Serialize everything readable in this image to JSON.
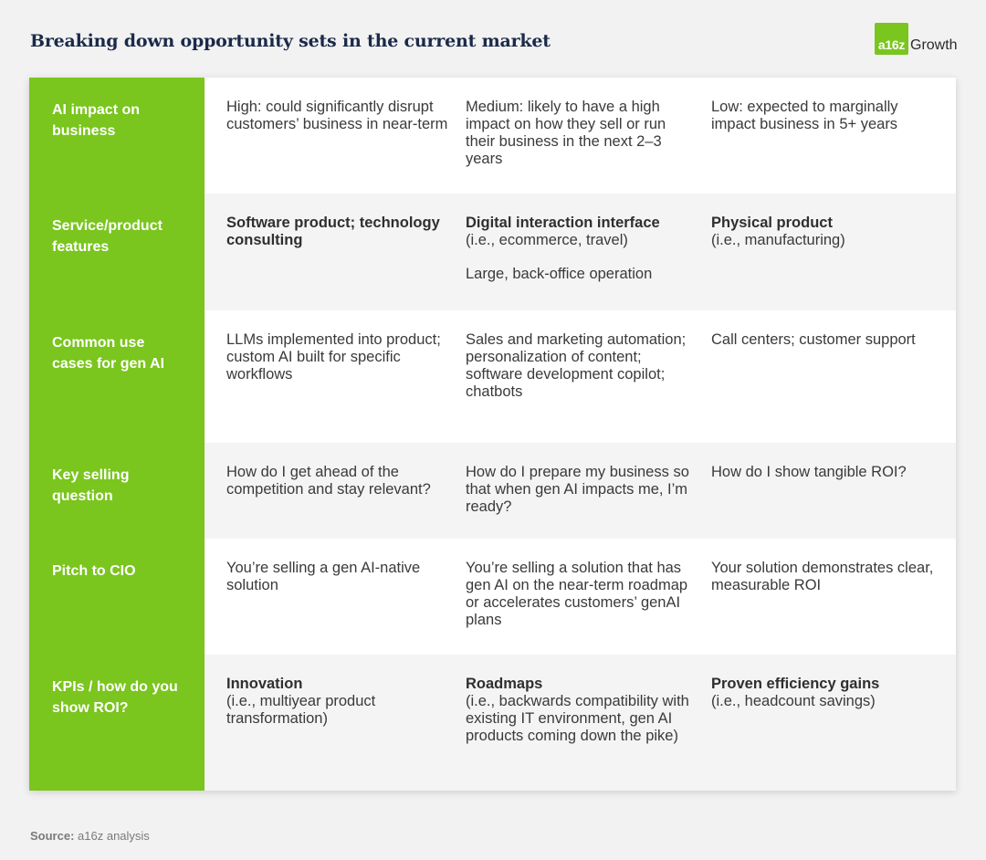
{
  "title": "Breaking down opportunity sets in the current market",
  "logo": {
    "mark": "a16z",
    "text": "Growth",
    "color": "#7ac51e"
  },
  "rows": [
    {
      "label": "AI impact on business",
      "cells": [
        {
          "bold": "",
          "text": "High: could significantly disrupt customers’ business in near-term",
          "extra": ""
        },
        {
          "bold": "",
          "text": "Medium: likely to have a high impact on how they sell or run their business in the next 2–3 years",
          "extra": ""
        },
        {
          "bold": "",
          "text": "Low: expected to marginally impact business in 5+ years",
          "extra": ""
        }
      ]
    },
    {
      "label": "Service/product features",
      "cells": [
        {
          "bold": "Software product; technology consulting",
          "text": "",
          "extra": ""
        },
        {
          "bold": "Digital interaction interface",
          "text": "(i.e., ecommerce, travel)",
          "extra": "Large, back-office operation"
        },
        {
          "bold": "Physical product",
          "text": "(i.e., manufacturing)",
          "extra": ""
        }
      ]
    },
    {
      "label": "Common use cases for gen AI",
      "cells": [
        {
          "bold": "",
          "text": "LLMs implemented into product; custom AI built for specific workflows",
          "extra": ""
        },
        {
          "bold": "",
          "text": "Sales and marketing automation; personalization of content; software development copilot; chatbots",
          "extra": ""
        },
        {
          "bold": "",
          "text": "Call centers; customer support",
          "extra": ""
        }
      ]
    },
    {
      "label": "Key selling question",
      "cells": [
        {
          "bold": "",
          "text": "How do I get ahead of the competition and stay relevant?",
          "extra": ""
        },
        {
          "bold": "",
          "text": "How do I prepare my business so that when gen AI impacts me, I’m ready?",
          "extra": ""
        },
        {
          "bold": "",
          "text": "How do I show tangible ROI?",
          "extra": ""
        }
      ]
    },
    {
      "label": "Pitch to CIO",
      "cells": [
        {
          "bold": "",
          "text": "You’re selling a gen AI-native solution",
          "extra": ""
        },
        {
          "bold": "",
          "text": "You’re selling a solution that has gen AI on the near-term roadmap or accelerates customers’ genAI plans",
          "extra": ""
        },
        {
          "bold": "",
          "text": "Your solution demonstrates clear, measurable ROI",
          "extra": ""
        }
      ]
    },
    {
      "label": "KPIs / how do you show ROI?",
      "cells": [
        {
          "bold": "Innovation",
          "text": "(i.e., multiyear product transformation)",
          "extra": ""
        },
        {
          "bold": "Roadmaps",
          "text": "(i.e., backwards compatibility with existing IT environment, gen AI products coming down the pike)",
          "extra": ""
        },
        {
          "bold": "Proven efficiency gains",
          "text": "(i.e., headcount savings)",
          "extra": ""
        }
      ]
    }
  ],
  "source": {
    "label": "Source:",
    "text": "a16z analysis"
  }
}
